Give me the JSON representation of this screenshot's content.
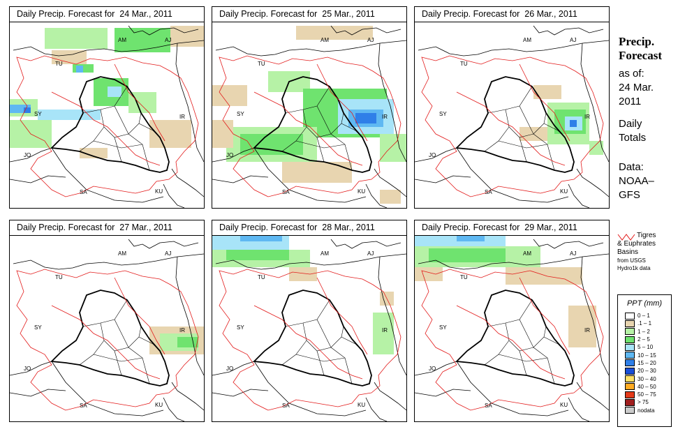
{
  "panels": [
    {
      "title": "Daily Precip. Forecast for  24 Mar., 2011"
    },
    {
      "title": "Daily Precip. Forecast for  25 Mar., 2011"
    },
    {
      "title": "Daily Precip. Forecast for  26 Mar., 2011"
    },
    {
      "title": "Daily Precip. Forecast for  27 Mar., 2011"
    },
    {
      "title": "Daily Precip. Forecast for  28 Mar., 2011"
    },
    {
      "title": "Daily Precip. Forecast for  29 Mar., 2011"
    }
  ],
  "country_labels": {
    "am": "AM",
    "aj": "AJ",
    "tu": "TU",
    "sy": "SY",
    "ir": "IR",
    "jo": "JO",
    "sa": "SA",
    "ku": "KU"
  },
  "side": {
    "title_line1": "Precip.",
    "title_line2": "Forecast",
    "asof": "as of:",
    "date_line1": "24 Mar.",
    "date_line2": "2011",
    "totals_line1": "Daily",
    "totals_line2": "Totals",
    "data_line1": "Data:",
    "data_line2": "NOAA–",
    "data_line3": "GFS"
  },
  "basin_key": {
    "line1": "Tigres",
    "line2": "& Euphrates",
    "line3": "Basins",
    "line4": "from USGS",
    "line5": "Hydro1k data",
    "line_color": "#e21a1a"
  },
  "legend": {
    "title": "PPT (mm)",
    "items": [
      {
        "label": "0 – 1",
        "color": "#ffffff"
      },
      {
        "label": ".1 – 1",
        "color": "#e8d5b0"
      },
      {
        "label": "1 – 2",
        "color": "#b6f2a6"
      },
      {
        "label": "2 – 5",
        "color": "#6fe36f"
      },
      {
        "label": "5 – 10",
        "color": "#a8e4f8"
      },
      {
        "label": "10 – 15",
        "color": "#5fb8f2"
      },
      {
        "label": "15 – 20",
        "color": "#2f7fe8"
      },
      {
        "label": "20 – 30",
        "color": "#1a4fd8"
      },
      {
        "label": "30 – 40",
        "color": "#ffe066"
      },
      {
        "label": "40 – 50",
        "color": "#ffaa22"
      },
      {
        "label": "50 – 75",
        "color": "#e33a1a"
      },
      {
        "label": "> 75",
        "color": "#a01e1e"
      },
      {
        "label": "nodata",
        "color": "#cccccc"
      }
    ]
  }
}
